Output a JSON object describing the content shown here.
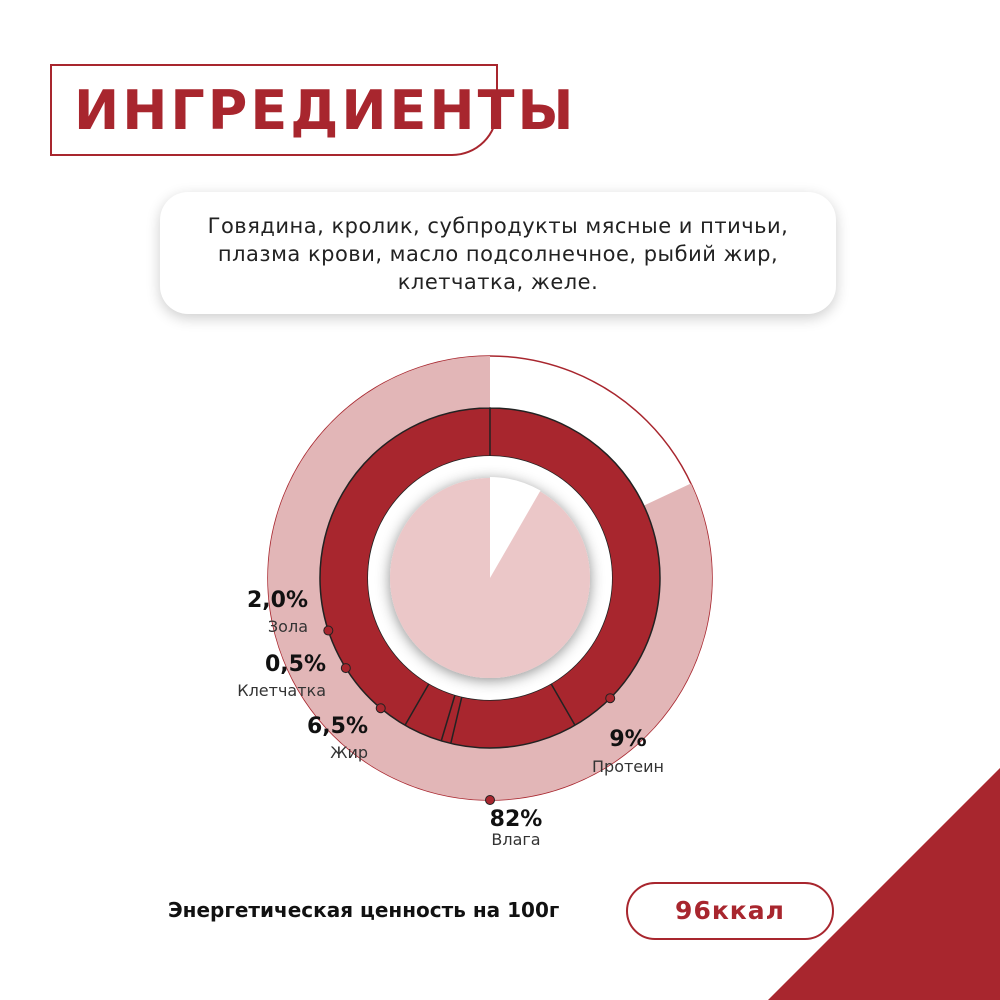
{
  "title": "ИНГРЕДИЕНТЫ",
  "ingredients_text": "Говядина, кролик, субпродукты мясные и птичьи, плазма крови, масло подсолнечное, рыбий жир, клетчатка, желе.",
  "energy": {
    "label": "Энергетическая ценность на 100г",
    "value": "96ккал"
  },
  "colors": {
    "accent": "#a8262e",
    "light_ring": "#e2b6b7",
    "center": "#ebc7c8",
    "background": "#ffffff"
  },
  "chart_data": {
    "type": "pie",
    "slices": [
      {
        "key": "moisture",
        "value_label": "82%",
        "label": "Влага",
        "value": 82,
        "ring": "outer"
      },
      {
        "key": "protein",
        "value_label": "9%",
        "label": "Протеин",
        "value": 9,
        "ring": "inner"
      },
      {
        "key": "fat",
        "value_label": "6,5%",
        "label": "Жир",
        "value": 6.5,
        "ring": "inner"
      },
      {
        "key": "fiber",
        "value_label": "0,5%",
        "label": "Клетчатка",
        "value": 0.5,
        "ring": "inner"
      },
      {
        "key": "ash",
        "value_label": "2,0%",
        "label": "Зола",
        "value": 2.0,
        "ring": "inner"
      }
    ]
  }
}
